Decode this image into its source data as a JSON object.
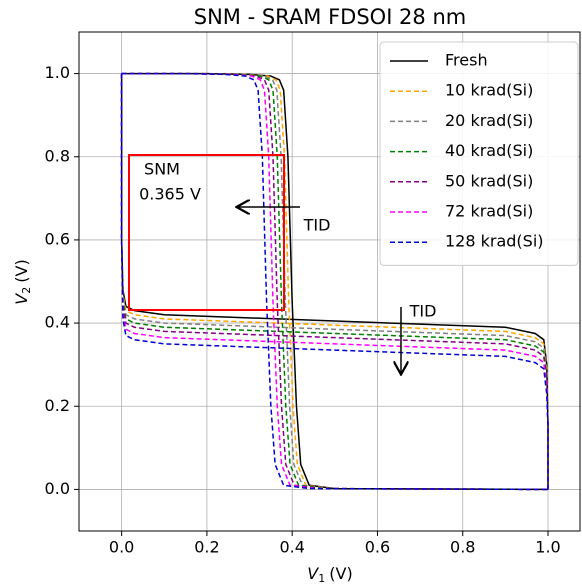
{
  "chart_data": {
    "type": "line",
    "title": "SNM - SRAM FDSOI 28 nm",
    "xlabel": {
      "symbol": "V",
      "sub": "1",
      "unit": "(V)"
    },
    "ylabel": {
      "symbol": "V",
      "sub": "2",
      "unit": "(V)"
    },
    "xlim": [
      -0.1,
      1.075
    ],
    "ylim": [
      -0.1,
      1.1
    ],
    "xticks": [
      {
        "value": 0,
        "label": "0.0"
      },
      0.2,
      0.4,
      0.6,
      0.8,
      {
        "value": 1,
        "label": "1.0"
      }
    ],
    "yticks": [
      {
        "value": 0,
        "label": "0.0"
      },
      0.2,
      0.4,
      0.6,
      0.8,
      {
        "value": 1,
        "label": "1.0"
      }
    ],
    "grid": true,
    "legend": "upper right",
    "series": [
      {
        "name": "Fresh",
        "color": "#000000",
        "style": "solid",
        "curves": [
          {
            "x": [
              0,
              0.2,
              0.3,
              0.35,
              0.37,
              0.38,
              0.39,
              0.4,
              0.41,
              0.42,
              0.44,
              0.5,
              1
            ],
            "y": [
              1,
              1,
              0.998,
              0.994,
              0.985,
              0.96,
              0.8,
              0.45,
              0.2,
              0.06,
              0.01,
              0.002,
              0
            ]
          },
          {
            "x": [
              0,
              0,
              0.003,
              0.01,
              0.03,
              0.1,
              0.5,
              0.9,
              0.97,
              0.99,
              0.997,
              1,
              1
            ],
            "y": [
              1,
              0.6,
              0.48,
              0.44,
              0.43,
              0.42,
              0.405,
              0.39,
              0.375,
              0.36,
              0.3,
              0.15,
              0
            ]
          }
        ]
      },
      {
        "name": "10 krad(Si)",
        "color": "#ffa500",
        "style": "dashed",
        "curves": [
          {
            "x": [
              0,
              0.192,
              0.292,
              0.342,
              0.362,
              0.372,
              0.382,
              0.392,
              0.402,
              0.412,
              0.432,
              0.492,
              1
            ],
            "y": [
              1,
              1,
              0.998,
              0.994,
              0.985,
              0.96,
              0.8,
              0.45,
              0.2,
              0.06,
              0.01,
              0.002,
              0
            ]
          },
          {
            "x": [
              0,
              0,
              0.003,
              0.01,
              0.03,
              0.1,
              0.5,
              0.9,
              0.97,
              0.99,
              0.997,
              1,
              1
            ],
            "y": [
              1,
              0.6,
              0.47,
              0.43,
              0.42,
              0.41,
              0.395,
              0.38,
              0.365,
              0.35,
              0.29,
              0.15,
              0
            ]
          }
        ]
      },
      {
        "name": "20 krad(Si)",
        "color": "#808080",
        "style": "dashed",
        "curves": [
          {
            "x": [
              0,
              0.184,
              0.284,
              0.334,
              0.354,
              0.364,
              0.374,
              0.384,
              0.394,
              0.404,
              0.424,
              0.484,
              1
            ],
            "y": [
              1,
              1,
              0.998,
              0.994,
              0.985,
              0.96,
              0.8,
              0.45,
              0.2,
              0.06,
              0.01,
              0.002,
              0
            ]
          },
          {
            "x": [
              0,
              0,
              0.003,
              0.01,
              0.03,
              0.1,
              0.5,
              0.9,
              0.97,
              0.99,
              0.997,
              1,
              1
            ],
            "y": [
              1,
              0.6,
              0.46,
              0.42,
              0.41,
              0.4,
              0.385,
              0.37,
              0.355,
              0.34,
              0.28,
              0.15,
              0
            ]
          }
        ]
      },
      {
        "name": "40 krad(Si)",
        "color": "#008000",
        "style": "dashed",
        "curves": [
          {
            "x": [
              0,
              0.175,
              0.275,
              0.325,
              0.345,
              0.355,
              0.365,
              0.375,
              0.385,
              0.395,
              0.415,
              0.475,
              1
            ],
            "y": [
              1,
              1,
              0.998,
              0.994,
              0.985,
              0.96,
              0.8,
              0.45,
              0.2,
              0.06,
              0.01,
              0.002,
              0
            ]
          },
          {
            "x": [
              0,
              0,
              0.003,
              0.01,
              0.03,
              0.1,
              0.5,
              0.9,
              0.97,
              0.99,
              0.997,
              1,
              1
            ],
            "y": [
              1,
              0.6,
              0.45,
              0.41,
              0.4,
              0.39,
              0.375,
              0.36,
              0.345,
              0.33,
              0.27,
              0.15,
              0
            ]
          }
        ]
      },
      {
        "name": "50 krad(Si)",
        "color": "#800080",
        "style": "dashed",
        "curves": [
          {
            "x": [
              0,
              0.165,
              0.265,
              0.315,
              0.335,
              0.345,
              0.355,
              0.365,
              0.375,
              0.385,
              0.405,
              0.465,
              1
            ],
            "y": [
              1,
              1,
              0.998,
              0.994,
              0.985,
              0.96,
              0.8,
              0.45,
              0.2,
              0.06,
              0.01,
              0.002,
              0
            ]
          },
          {
            "x": [
              0,
              0,
              0.003,
              0.01,
              0.03,
              0.1,
              0.5,
              0.9,
              0.97,
              0.99,
              0.997,
              1,
              1
            ],
            "y": [
              1,
              0.6,
              0.44,
              0.4,
              0.39,
              0.38,
              0.365,
              0.35,
              0.335,
              0.32,
              0.26,
              0.15,
              0
            ]
          }
        ]
      },
      {
        "name": "72 krad(Si)",
        "color": "#ff00ff",
        "style": "dashed",
        "curves": [
          {
            "x": [
              0,
              0.155,
              0.255,
              0.305,
              0.325,
              0.335,
              0.345,
              0.355,
              0.365,
              0.375,
              0.395,
              0.455,
              1
            ],
            "y": [
              1,
              1,
              0.998,
              0.994,
              0.985,
              0.96,
              0.8,
              0.45,
              0.2,
              0.06,
              0.01,
              0.002,
              0
            ]
          },
          {
            "x": [
              0,
              0,
              0.003,
              0.01,
              0.03,
              0.1,
              0.5,
              0.9,
              0.97,
              0.99,
              0.997,
              1,
              1
            ],
            "y": [
              1,
              0.6,
              0.425,
              0.385,
              0.375,
              0.365,
              0.35,
              0.335,
              0.32,
              0.305,
              0.245,
              0.15,
              0
            ]
          }
        ]
      },
      {
        "name": "128 krad(Si)",
        "color": "#0000cd",
        "style": "dashed",
        "curves": [
          {
            "x": [
              0,
              0.14,
              0.24,
              0.29,
              0.31,
              0.32,
              0.33,
              0.34,
              0.35,
              0.36,
              0.38,
              0.44,
              1
            ],
            "y": [
              1,
              1,
              0.998,
              0.994,
              0.985,
              0.96,
              0.8,
              0.45,
              0.2,
              0.06,
              0.01,
              0.002,
              0
            ]
          },
          {
            "x": [
              0,
              0,
              0.003,
              0.01,
              0.03,
              0.1,
              0.5,
              0.9,
              0.97,
              0.99,
              0.997,
              1,
              1
            ],
            "y": [
              1,
              0.6,
              0.41,
              0.37,
              0.36,
              0.35,
              0.335,
              0.32,
              0.305,
              0.29,
              0.23,
              0.15,
              0
            ]
          }
        ]
      }
    ],
    "annotations": {
      "snm": "SNM",
      "snm_value": "0.365 V",
      "tid_left": "TID",
      "tid_down": "TID"
    }
  }
}
